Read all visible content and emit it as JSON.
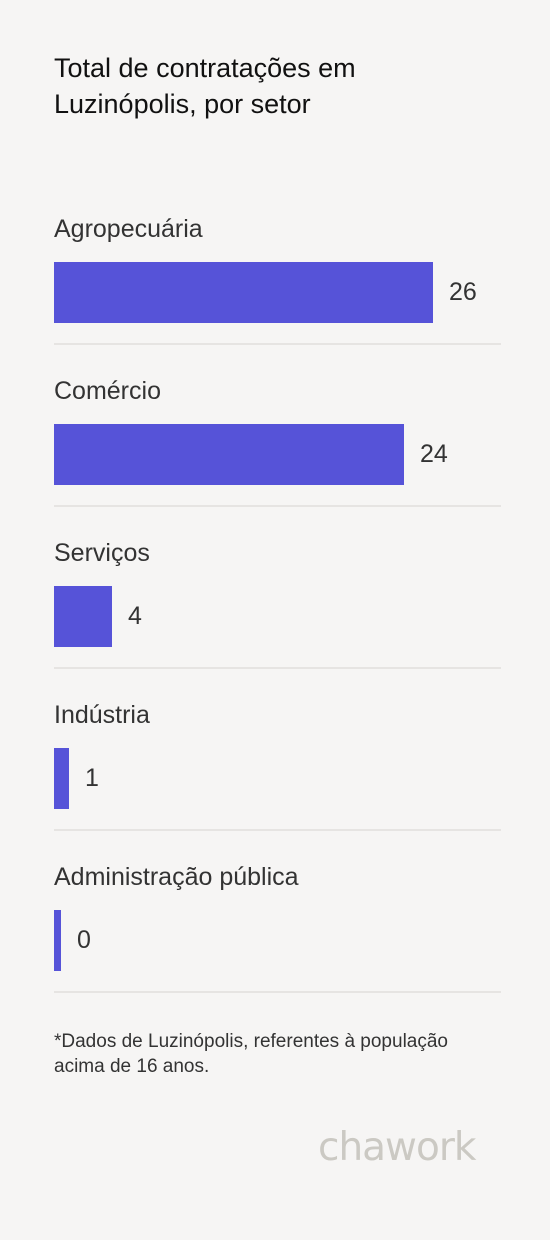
{
  "chart_data": {
    "type": "bar",
    "orientation": "horizontal",
    "title": "Total de contratações em Luzinópolis, por setor",
    "categories": [
      "Agropecuária",
      "Comércio",
      "Serviços",
      "Indústria",
      "Administração pública"
    ],
    "values": [
      26,
      24,
      4,
      1,
      0
    ],
    "xlim": [
      0,
      26
    ],
    "grid": false,
    "legend": "none",
    "bar_color": "#5653d8"
  },
  "footnote": "*Dados de Luzinópolis, referentes à população acima de 16 anos.",
  "brand": {
    "logo_text": "chawork",
    "logo_color": "#cbc9c3"
  }
}
